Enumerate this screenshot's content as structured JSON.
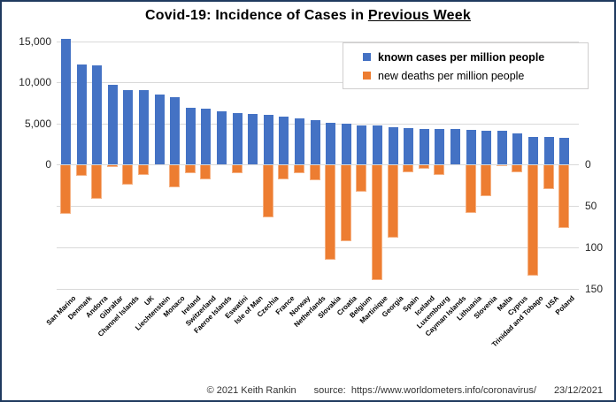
{
  "title": {
    "prefix": "Covid-19: Incidence of Cases in ",
    "underlined": "Previous Week"
  },
  "legend": [
    {
      "label": "known cases per million people",
      "color": "#4472c4",
      "bold": true
    },
    {
      "label": "new deaths per million people",
      "color": "#ed7d31",
      "bold": false
    }
  ],
  "footer": {
    "copyright": "© 2021  Keith Rankin",
    "source_label": "source:",
    "source_url": "https://www.worldometers.info/coronavirus/",
    "date": "23/12/2021"
  },
  "chart_data": {
    "type": "bar",
    "title": "Covid-19: Incidence of Cases in Previous Week",
    "legend_position": "top-right",
    "grid": true,
    "left_axis": {
      "title": "",
      "ticks": [
        {
          "v": 15000,
          "label": "15,000"
        },
        {
          "v": 10000,
          "label": "10,000"
        },
        {
          "v": 5000,
          "label": "5,000"
        },
        {
          "v": 0,
          "label": "0"
        }
      ],
      "max": 15000
    },
    "right_axis": {
      "title": "",
      "inverted": true,
      "ticks": [
        {
          "v": 0,
          "label": "0"
        },
        {
          "v": 50,
          "label": "50"
        },
        {
          "v": 100,
          "label": "100"
        },
        {
          "v": 150,
          "label": "150"
        }
      ],
      "max": 150
    },
    "categories": [
      "San Marino",
      "Denmark",
      "Andorra",
      "Gibraltar",
      "Channel Islands",
      "UK",
      "Liechtenstein",
      "Monaco",
      "Ireland",
      "Switzerland",
      "Faeroe Islands",
      "Eswatini",
      "Isle of Man",
      "Czechia",
      "France",
      "Norway",
      "Netherlands",
      "Slovakia",
      "Croatia",
      "Belgium",
      "Martinique",
      "Georgia",
      "Spain",
      "Iceland",
      "Luxembourg",
      "Cayman Islands",
      "Lithuania",
      "Slovenia",
      "Malta",
      "Cyprus",
      "Trinidad and Tobago",
      "USA",
      "Poland"
    ],
    "series": [
      {
        "name": "known cases per million people",
        "axis": "left",
        "direction": "up",
        "color": "#4472c4",
        "values": [
          15300,
          12200,
          12100,
          9700,
          9100,
          9050,
          8500,
          8200,
          6900,
          6800,
          6450,
          6250,
          6200,
          6050,
          5850,
          5650,
          5400,
          5100,
          4950,
          4780,
          4770,
          4520,
          4400,
          4350,
          4330,
          4280,
          4160,
          4150,
          4050,
          3800,
          3350,
          3340,
          3200
        ]
      },
      {
        "name": "new deaths per million people",
        "axis": "right",
        "direction": "down",
        "color": "#ed7d31",
        "values": [
          59,
          13,
          40,
          2,
          23,
          12,
          0,
          27,
          10,
          17,
          0,
          10,
          0,
          63,
          17,
          10,
          18,
          114,
          92,
          32,
          138,
          87,
          8,
          4,
          12,
          0,
          57,
          37,
          1,
          8,
          133,
          29,
          75
        ]
      }
    ]
  }
}
